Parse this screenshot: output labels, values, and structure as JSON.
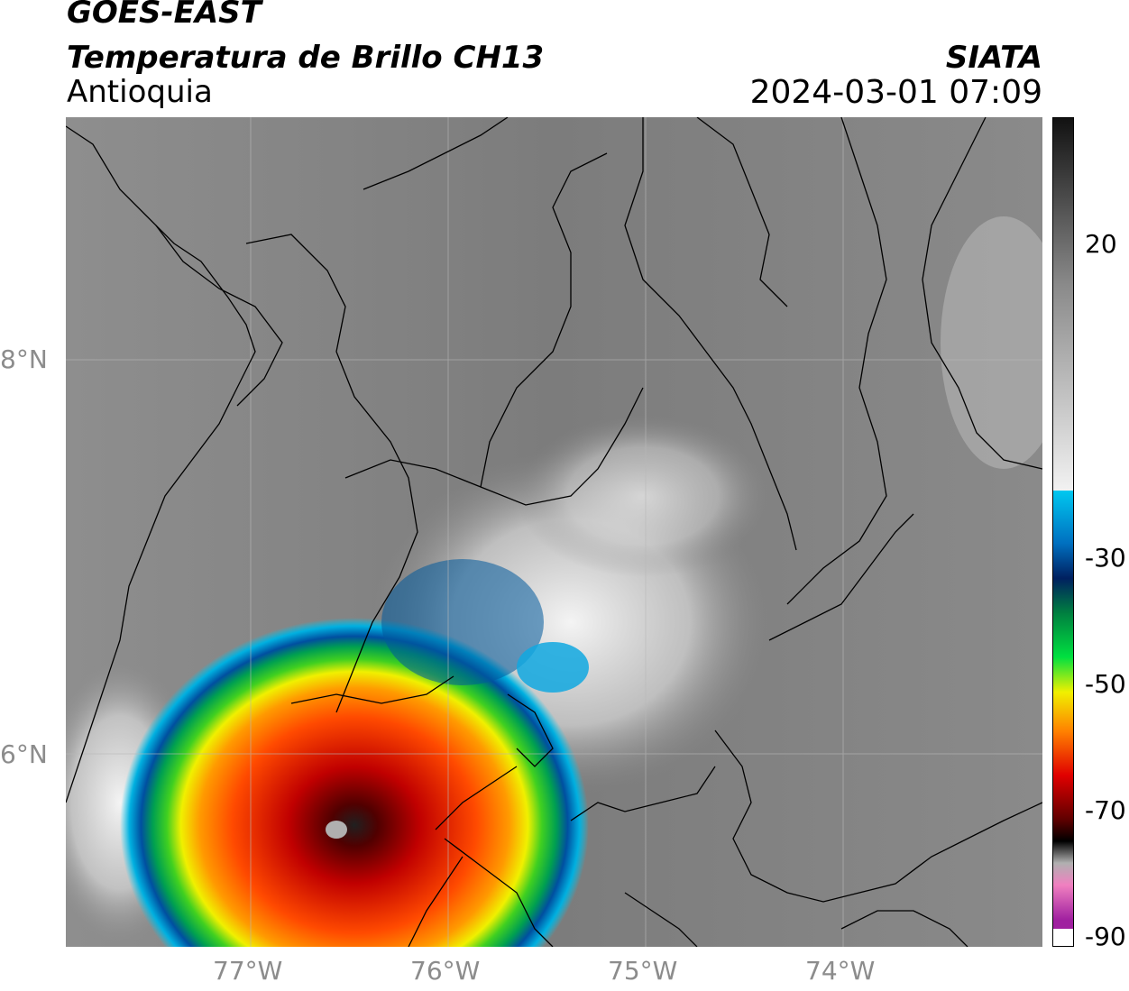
{
  "header": {
    "satellite": "GOES-EAST",
    "product": "Temperatura de Brillo CH13",
    "region": "Antioquia",
    "organization": "SIATA",
    "datetime": "2024-03-01 07:09"
  },
  "map": {
    "lat_ticks": [
      "8°N",
      "6°N"
    ],
    "lon_ticks": [
      "77°W",
      "76°W",
      "75°W",
      "74°W"
    ],
    "extent": {
      "lon": [
        -77.95,
        -73.0
      ],
      "lat": [
        5.0,
        9.2
      ]
    }
  },
  "colorbar": {
    "ticks": [
      "20",
      "-30",
      "-50",
      "-70",
      "-90"
    ],
    "colors": {
      "warm_top": "#111111",
      "warm_mid": "#8a8a8a",
      "warm_low": "#f2f2f2",
      "cyan": "#00c8f0",
      "blue": "#004fa0",
      "navy": "#002060",
      "green": "#00c040",
      "yellow": "#f0f000",
      "orange": "#ff8000",
      "red": "#e00000",
      "darkred": "#600000",
      "black": "#000000",
      "pink": "#f080c0",
      "purple": "#a020a0"
    }
  }
}
